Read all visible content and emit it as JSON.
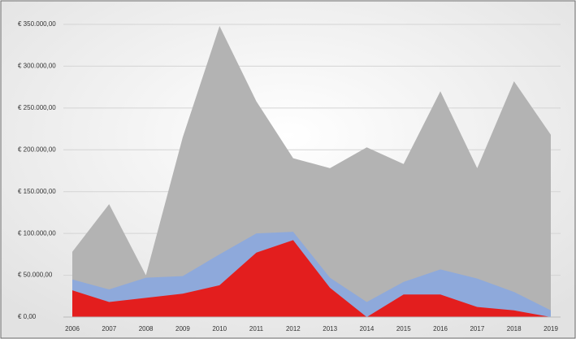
{
  "chart_data": {
    "type": "area",
    "categories": [
      "2006",
      "2007",
      "2008",
      "2009",
      "2010",
      "2011",
      "2012",
      "2013",
      "2014",
      "2015",
      "2016",
      "2017",
      "2018",
      "2019"
    ],
    "series": [
      {
        "color": "#b3b3b3",
        "values": [
          78000,
          135000,
          50000,
          215000,
          348000,
          258000,
          190000,
          178000,
          203000,
          183000,
          270000,
          178000,
          282000,
          218000
        ]
      },
      {
        "color": "#8ea9db",
        "values": [
          45000,
          33000,
          47000,
          49000,
          75000,
          100000,
          102000,
          47000,
          18000,
          42000,
          57000,
          46000,
          30000,
          8000
        ]
      },
      {
        "color": "#e31e1e",
        "values": [
          32000,
          18000,
          23000,
          28000,
          38000,
          77000,
          92000,
          35000,
          0,
          27000,
          27000,
          12000,
          8000,
          0
        ]
      }
    ],
    "ylim": [
      0,
      350000
    ],
    "yticks": [
      {
        "value": 0,
        "label": "€ 0,00"
      },
      {
        "value": 50000,
        "label": "€ 50.000,00"
      },
      {
        "value": 100000,
        "label": "€ 100.000,00"
      },
      {
        "value": 150000,
        "label": "€ 150.000,00"
      },
      {
        "value": 200000,
        "label": "€ 200.000,00"
      },
      {
        "value": 250000,
        "label": "€ 250.000,00"
      },
      {
        "value": 300000,
        "label": "€ 300.000,00"
      },
      {
        "value": 350000,
        "label": "€ 350.000,00"
      }
    ],
    "grid": true
  }
}
